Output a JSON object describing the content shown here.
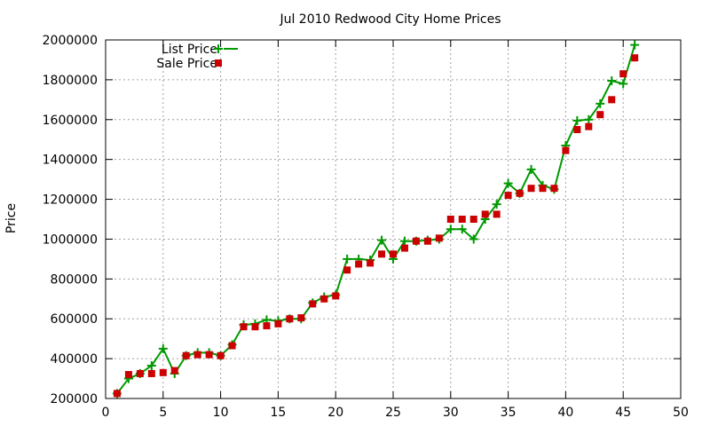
{
  "chart_data": {
    "type": "line",
    "title": "Jul 2010 Redwood City Home Prices",
    "xlabel": "",
    "ylabel": "Price",
    "xlim": [
      0,
      50
    ],
    "ylim": [
      200000,
      2000000
    ],
    "xticks": [
      0,
      5,
      10,
      15,
      20,
      25,
      30,
      35,
      40,
      45,
      50
    ],
    "yticks": [
      200000,
      400000,
      600000,
      800000,
      1000000,
      1200000,
      1400000,
      1600000,
      1800000,
      2000000
    ],
    "grid": true,
    "legend_position": "top-left",
    "series": [
      {
        "name": "List Price",
        "style": "line-with-plus-markers",
        "color": "#009900",
        "x": [
          1,
          2,
          3,
          4,
          5,
          6,
          7,
          8,
          9,
          10,
          11,
          12,
          13,
          14,
          15,
          16,
          17,
          18,
          19,
          20,
          21,
          22,
          23,
          24,
          25,
          26,
          27,
          28,
          29,
          30,
          31,
          32,
          33,
          34,
          35,
          36,
          37,
          38,
          39,
          40,
          41,
          42,
          43,
          44,
          45,
          46
        ],
        "y": [
          225000,
          300000,
          325000,
          365000,
          450000,
          325000,
          415000,
          430000,
          430000,
          415000,
          470000,
          570000,
          575000,
          595000,
          590000,
          600000,
          600000,
          680000,
          710000,
          720000,
          900000,
          900000,
          895000,
          995000,
          900000,
          990000,
          990000,
          995000,
          1000000,
          1050000,
          1050000,
          1000000,
          1100000,
          1175000,
          1280000,
          1230000,
          1350000,
          1270000,
          1250000,
          1470000,
          1595000,
          1600000,
          1680000,
          1795000,
          1780000,
          1975000
        ]
      },
      {
        "name": "Sale Price",
        "style": "square-markers",
        "color": "#cc0000",
        "x": [
          1,
          2,
          3,
          4,
          5,
          6,
          7,
          8,
          9,
          10,
          11,
          12,
          13,
          14,
          15,
          16,
          17,
          18,
          19,
          20,
          21,
          22,
          23,
          24,
          25,
          26,
          27,
          28,
          29,
          30,
          31,
          32,
          33,
          34,
          35,
          36,
          37,
          38,
          39,
          40,
          41,
          42,
          43,
          44,
          45,
          46
        ],
        "y": [
          225000,
          320000,
          325000,
          325000,
          330000,
          340000,
          415000,
          420000,
          420000,
          415000,
          465000,
          560000,
          560000,
          565000,
          575000,
          600000,
          605000,
          675000,
          700000,
          715000,
          845000,
          875000,
          880000,
          925000,
          925000,
          955000,
          990000,
          990000,
          1005000,
          1100000,
          1100000,
          1100000,
          1125000,
          1125000,
          1220000,
          1230000,
          1255000,
          1255000,
          1255000,
          1445000,
          1550000,
          1565000,
          1625000,
          1700000,
          1830000,
          1910000
        ]
      }
    ]
  }
}
